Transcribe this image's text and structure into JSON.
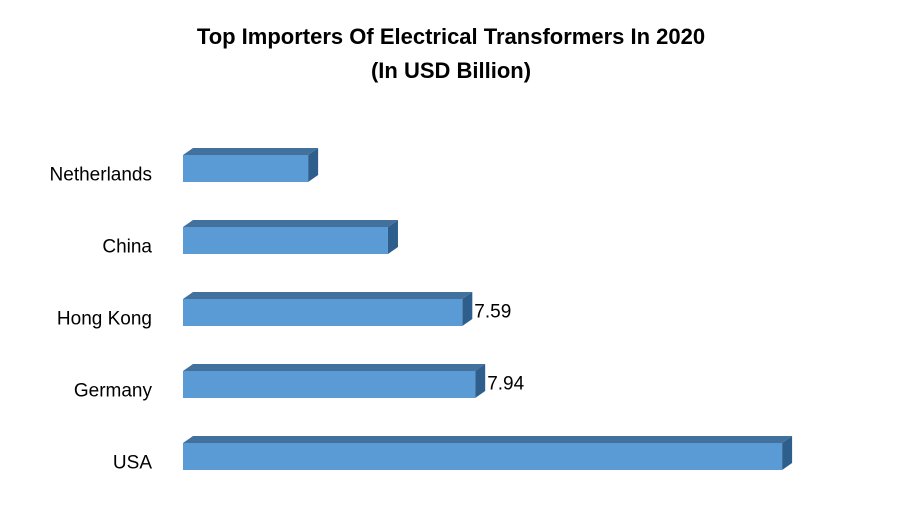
{
  "chart_data": {
    "type": "bar3d-horizontal",
    "title": "Top Importers Of Electrical Transformers In 2020",
    "subtitle": "(In USD Billion)",
    "categories": [
      "Netherlands",
      "China",
      "Hong Kong",
      "Germany",
      "USA"
    ],
    "values": [
      3.4,
      5.57,
      7.59,
      7.94,
      16.28
    ],
    "value_labels": [
      null,
      null,
      "7.59",
      "7.94",
      null
    ],
    "color": "#5b9bd5",
    "top_color": "#41719c",
    "side_color": "#2e5e8c"
  }
}
